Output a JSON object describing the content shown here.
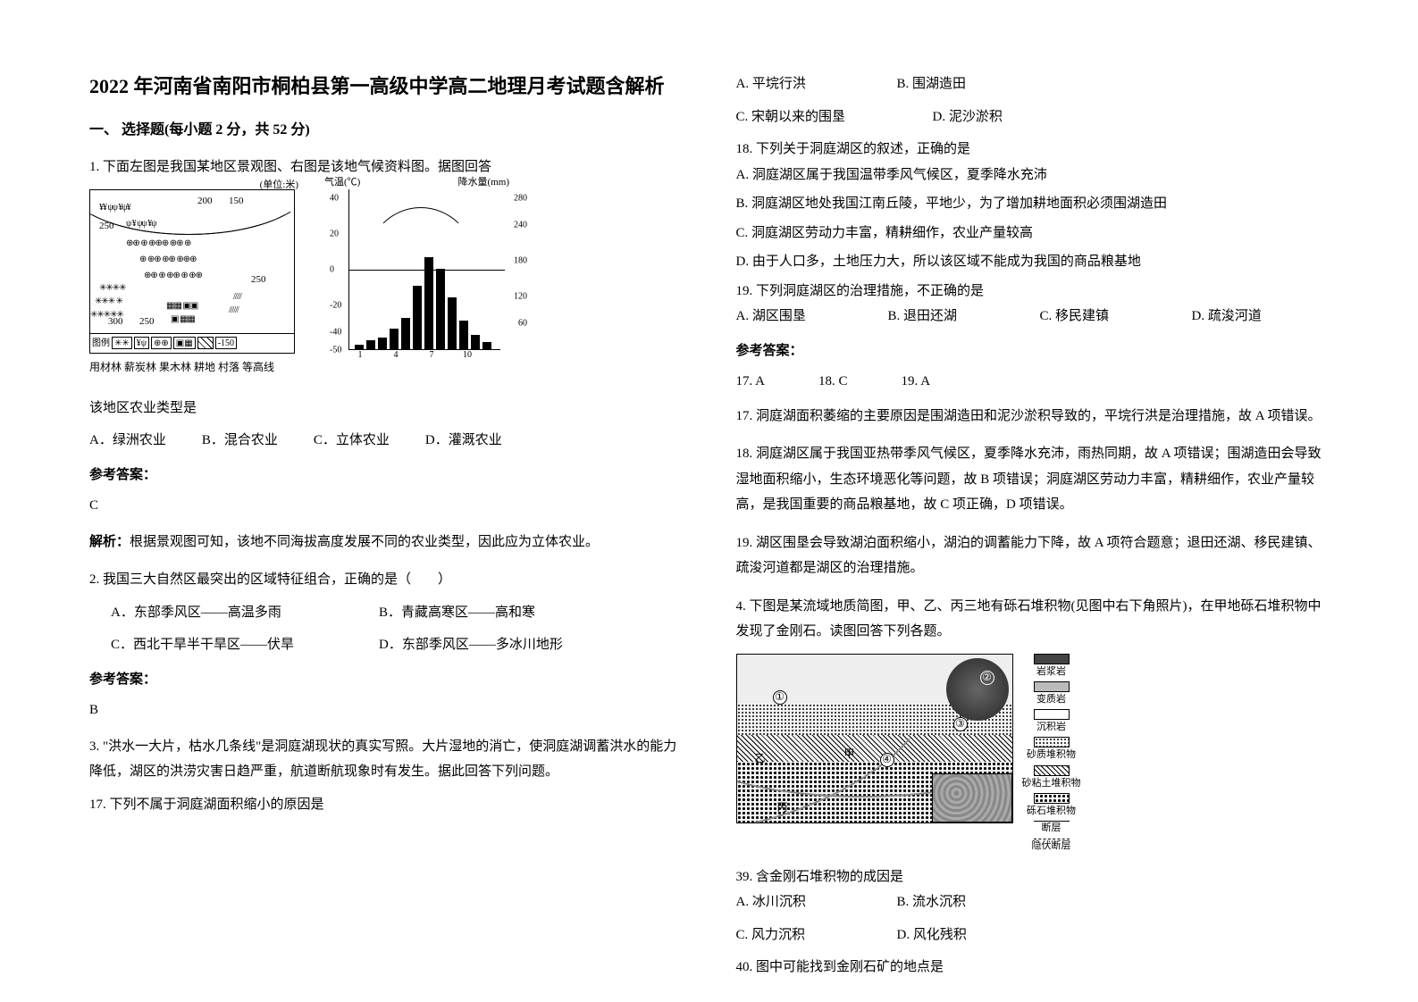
{
  "title": "2022 年河南省南阳市桐柏县第一高级中学高二地理月考试题含解析",
  "section1": "一、 选择题(每小题 2 分，共 52 分)",
  "q1": {
    "stem": "1. 下面左图是我国某地区景观图、右图是该地气候资料图。据图回答",
    "sub": "该地区农业类型是",
    "opts": {
      "a": "A．绿洲农业",
      "b": "B．混合农业",
      "c": "C．立体农业",
      "d": "D．灌溉农业"
    },
    "ans_label": "参考答案：",
    "ans": "C",
    "exp_label": "解析：",
    "exp": "根据景观图可知，该地不同海拔高度发展不同的农业类型，因此应为立体农业。"
  },
  "map": {
    "unit": "(单位:米)",
    "c150a": "150",
    "c200": "200",
    "c250a": "250",
    "c250b": "250",
    "c250c": "250",
    "c300": "300",
    "cn150": "-150",
    "leg_prefix": "图例",
    "caption": "用材林 薪炭林 果木林 耕地  村落 等高线"
  },
  "climate": {
    "t_label": "气温(℃)",
    "p_label": "降水量(mm)",
    "t_ticks": [
      "40",
      "20",
      "0",
      "-20",
      "-40",
      "-50"
    ],
    "p_ticks": [
      "280",
      "240",
      "180",
      "120",
      "60"
    ],
    "x_ticks": [
      "1",
      "4",
      "7",
      "10"
    ],
    "bars": [
      8,
      15,
      20,
      35,
      55,
      110,
      160,
      140,
      90,
      50,
      25,
      12
    ]
  },
  "q2": {
    "stem": "2. 我国三大自然区最突出的区域特征组合，正确的是（　　）",
    "opts": {
      "a": "A．东部季风区——高温多雨",
      "b": "B．青藏高寒区——高和寒",
      "c": "C．西北干旱半干旱区——伏旱",
      "d": "D．东部季风区——多冰川地形"
    },
    "ans_label": "参考答案：",
    "ans": "B"
  },
  "q3": {
    "intro": "3. \"洪水一大片，枯水几条线\"是洞庭湖现状的真实写照。大片湿地的消亡，使洞庭湖调蓄洪水的能力降低，湖区的洪涝灾害日趋严重，航道断航现象时有发生。据此回答下列问题。",
    "q17": "17.  下列不属于洞庭湖面积缩小的原因是",
    "q17_opts": {
      "a": "A. 平垸行洪",
      "b": "B. 围湖造田",
      "c": "C. 宋朝以来的围垦",
      "d": "D. 泥沙淤积"
    },
    "q18": "18.  下列关于洞庭湖区的叙述，正确的是",
    "q18_opts": {
      "a": "A. 洞庭湖区属于我国温带季风气候区，夏季降水充沛",
      "b": "B. 洞庭湖区地处我国江南丘陵，平地少，为了增加耕地面积必须围湖造田",
      "c": "C. 洞庭湖区劳动力丰富，精耕细作，农业产量较高",
      "d": "D. 由于人口多，土地压力大，所以该区域不能成为我国的商品粮基地"
    },
    "q19": "19.  下列洞庭湖区的治理措施，不正确的是",
    "q19_opts": {
      "a": "A. 湖区围垦",
      "b": "B. 退田还湖",
      "c": "C. 移民建镇",
      "d": "D. 疏浚河道"
    },
    "ans_label": "参考答案：",
    "a17": "17. A",
    "a18": "18. C",
    "a19": "19. A",
    "exp17": "17. 洞庭湖面积萎缩的主要原因是围湖造田和泥沙淤积导致的，平垸行洪是治理措施，故 A 项错误。",
    "exp18": "18. 洞庭湖区属于我国亚热带季风气候区，夏季降水充沛，雨热同期，故 A 项错误；围湖造田会导致湿地面积缩小，生态环境恶化等问题，故 B 项错误；洞庭湖区劳动力丰富，精耕细作，农业产量较高，是我国重要的商品粮基地，故 C 项正确，D 项错误。",
    "exp19": "19. 湖区围垦会导致湖泊面积缩小，湖泊的调蓄能力下降，故 A 项符合题意；退田还湖、移民建镇、疏浚河道都是湖区的治理措施。"
  },
  "q4": {
    "stem": "4. 下图是某流域地质简图，甲、乙、丙三地有砾石堆积物(见图中右下角照片)，在甲地砾石堆积物中发现了金刚石。读图回答下列各题。",
    "q39": "39.  含金刚石堆积物的成因是",
    "q39_opts": {
      "a": "A. 冰川沉积",
      "b": "B. 流水沉积",
      "c": "C. 风力沉积",
      "d": "D. 风化残积"
    },
    "q40": "40.  图中可能找到金刚石矿的地点是"
  },
  "geo": {
    "n1": "①",
    "n2": "②",
    "n3": "③",
    "n4": "④",
    "jia": "甲",
    "yi": "乙",
    "bing": "丙",
    "legend": {
      "magma": "岩浆岩",
      "meta": "变质岩",
      "sed": "沉积岩",
      "sand": "砂质堆积物",
      "sandclay": "砂粘土堆积物",
      "gravel": "砾石堆积物",
      "fault": "断层",
      "hfault": "隐伏断层"
    }
  }
}
